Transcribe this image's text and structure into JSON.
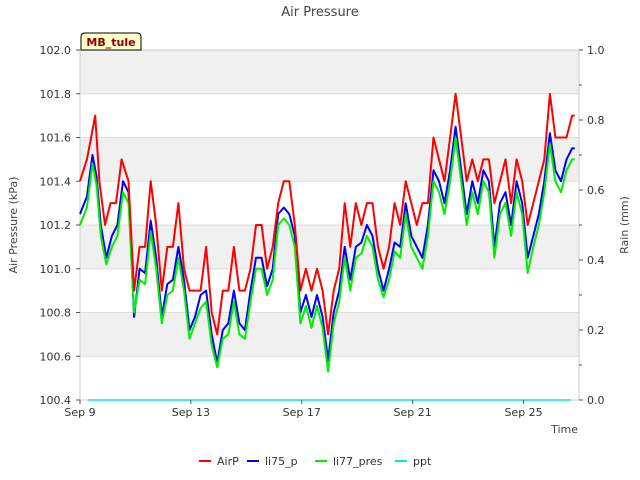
{
  "chart_data": {
    "type": "line",
    "title": "Air Pressure",
    "xlabel": "Time",
    "ylabel": "Air Pressure (kPa)",
    "y2label": "Rain (mm)",
    "site_label": "MB_tule",
    "xlim": [
      9.0,
      27.0
    ],
    "ylim": [
      100.4,
      102.0
    ],
    "y2lim": [
      0.0,
      1.0
    ],
    "x_ticks": [
      9,
      13,
      17,
      21,
      25
    ],
    "x_tick_labels": [
      "Sep 9",
      "Sep 13",
      "Sep 17",
      "Sep 21",
      "Sep 25"
    ],
    "y_tick_labels": [
      "100.4",
      "100.6",
      "100.8",
      "101.0",
      "101.2",
      "101.4",
      "101.6",
      "101.8",
      "102.0"
    ],
    "y2_tick_labels": [
      "0.0",
      "0.2",
      "0.4",
      "0.6",
      "0.8",
      "1.0"
    ],
    "legend": [
      "AirP",
      "li75_p",
      "li77_pres",
      "ppt"
    ],
    "legend_position": "bottom-center",
    "colors": {
      "AirP": "#ff0000",
      "li75_p": "#0000ff",
      "li77_pres": "#00ee00",
      "ppt": "#00e5ee",
      "band": "#f0f0f0",
      "grid": "#dddddd",
      "site_box_fill": "#ffffcc",
      "site_box_text": "#8b0000"
    },
    "series": [
      {
        "name": "li75_p",
        "x": [
          9.0,
          9.25,
          9.45,
          9.6,
          9.75,
          9.95,
          10.15,
          10.35,
          10.55,
          10.75,
          10.95,
          11.15,
          11.35,
          11.55,
          11.75,
          11.95,
          12.15,
          12.35,
          12.55,
          12.75,
          12.95,
          13.15,
          13.35,
          13.55,
          13.75,
          13.95,
          14.15,
          14.35,
          14.55,
          14.75,
          14.95,
          15.15,
          15.35,
          15.55,
          15.75,
          15.95,
          16.15,
          16.35,
          16.55,
          16.75,
          16.95,
          17.15,
          17.35,
          17.55,
          17.75,
          17.95,
          18.15,
          18.35,
          18.55,
          18.75,
          18.95,
          19.15,
          19.35,
          19.55,
          19.75,
          19.95,
          20.15,
          20.35,
          20.55,
          20.75,
          20.95,
          21.15,
          21.35,
          21.55,
          21.75,
          21.95,
          22.15,
          22.35,
          22.55,
          22.75,
          22.95,
          23.15,
          23.35,
          23.55,
          23.75,
          23.95,
          24.15,
          24.35,
          24.55,
          24.75,
          24.95,
          25.15,
          25.35,
          25.55,
          25.75,
          25.95,
          26.15,
          26.35,
          26.55,
          26.75,
          26.85
        ],
        "values": [
          101.25,
          101.33,
          101.52,
          101.42,
          101.2,
          101.05,
          101.15,
          101.2,
          101.4,
          101.35,
          100.78,
          101.0,
          100.98,
          101.22,
          101.05,
          100.78,
          100.93,
          100.95,
          101.1,
          100.95,
          100.72,
          100.78,
          100.88,
          100.9,
          100.7,
          100.57,
          100.72,
          100.75,
          100.9,
          100.75,
          100.72,
          100.9,
          101.05,
          101.05,
          100.92,
          101.0,
          101.25,
          101.28,
          101.25,
          101.15,
          100.8,
          100.88,
          100.78,
          100.88,
          100.78,
          100.58,
          100.8,
          100.9,
          101.1,
          100.95,
          101.1,
          101.12,
          101.2,
          101.15,
          101.0,
          100.9,
          101.0,
          101.12,
          101.1,
          101.3,
          101.15,
          101.1,
          101.05,
          101.2,
          101.45,
          101.4,
          101.3,
          101.45,
          101.65,
          101.45,
          101.25,
          101.4,
          101.3,
          101.45,
          101.4,
          101.1,
          101.3,
          101.35,
          101.2,
          101.4,
          101.3,
          101.05,
          101.15,
          101.25,
          101.4,
          101.62,
          101.45,
          101.4,
          101.5,
          101.55,
          101.55
        ]
      },
      {
        "name": "li77_pres",
        "x": [
          9.0,
          9.25,
          9.45,
          9.6,
          9.75,
          9.95,
          10.15,
          10.35,
          10.55,
          10.75,
          10.95,
          11.15,
          11.35,
          11.55,
          11.75,
          11.95,
          12.15,
          12.35,
          12.55,
          12.75,
          12.95,
          13.15,
          13.35,
          13.55,
          13.75,
          13.95,
          14.15,
          14.35,
          14.55,
          14.75,
          14.95,
          15.15,
          15.35,
          15.55,
          15.75,
          15.95,
          16.15,
          16.35,
          16.55,
          16.75,
          16.95,
          17.15,
          17.35,
          17.55,
          17.75,
          17.95,
          18.15,
          18.35,
          18.55,
          18.75,
          18.95,
          19.15,
          19.35,
          19.55,
          19.75,
          19.95,
          20.15,
          20.35,
          20.55,
          20.75,
          20.95,
          21.15,
          21.35,
          21.55,
          21.75,
          21.95,
          22.15,
          22.35,
          22.55,
          22.75,
          22.95,
          23.15,
          23.35,
          23.55,
          23.75,
          23.95,
          24.15,
          24.35,
          24.55,
          24.75,
          24.95,
          25.15,
          25.35,
          25.55,
          25.75,
          25.95,
          26.15,
          26.35,
          26.55,
          26.75,
          26.85
        ],
        "values": [
          101.2,
          101.28,
          101.48,
          101.38,
          101.15,
          101.02,
          101.1,
          101.15,
          101.35,
          101.3,
          100.8,
          100.95,
          100.93,
          101.17,
          101.0,
          100.75,
          100.88,
          100.9,
          101.05,
          100.9,
          100.68,
          100.75,
          100.82,
          100.85,
          100.65,
          100.55,
          100.68,
          100.7,
          100.85,
          100.7,
          100.68,
          100.85,
          101.0,
          101.0,
          100.88,
          100.95,
          101.2,
          101.23,
          101.2,
          101.1,
          100.75,
          100.83,
          100.73,
          100.83,
          100.73,
          100.53,
          100.75,
          100.85,
          101.05,
          100.9,
          101.05,
          101.07,
          101.15,
          101.1,
          100.95,
          100.87,
          100.95,
          101.08,
          101.05,
          101.25,
          101.1,
          101.05,
          101.0,
          101.15,
          101.4,
          101.35,
          101.25,
          101.4,
          101.6,
          101.4,
          101.2,
          101.35,
          101.25,
          101.4,
          101.35,
          101.05,
          101.25,
          101.3,
          101.15,
          101.35,
          101.25,
          100.98,
          101.1,
          101.2,
          101.35,
          101.57,
          101.4,
          101.35,
          101.45,
          101.5,
          101.5
        ]
      },
      {
        "name": "AirP",
        "x": [
          9.0,
          9.25,
          9.4,
          9.55,
          9.7,
          9.9,
          10.1,
          10.3,
          10.5,
          10.75,
          10.95,
          11.15,
          11.35,
          11.55,
          11.75,
          11.95,
          12.15,
          12.35,
          12.55,
          12.75,
          12.95,
          13.15,
          13.35,
          13.55,
          13.75,
          13.95,
          14.15,
          14.35,
          14.55,
          14.75,
          14.95,
          15.15,
          15.35,
          15.55,
          15.75,
          15.95,
          16.15,
          16.35,
          16.55,
          16.75,
          16.95,
          17.15,
          17.35,
          17.55,
          17.75,
          17.95,
          18.15,
          18.35,
          18.55,
          18.75,
          18.95,
          19.15,
          19.35,
          19.55,
          19.75,
          19.95,
          20.15,
          20.35,
          20.55,
          20.75,
          20.95,
          21.15,
          21.35,
          21.55,
          21.75,
          21.95,
          22.15,
          22.35,
          22.55,
          22.75,
          22.95,
          23.15,
          23.35,
          23.55,
          23.75,
          23.95,
          24.15,
          24.35,
          24.55,
          24.75,
          24.95,
          25.15,
          25.35,
          25.55,
          25.75,
          25.95,
          26.15,
          26.35,
          26.55,
          26.75,
          26.85
        ],
        "values": [
          101.4,
          101.5,
          101.6,
          101.7,
          101.4,
          101.2,
          101.3,
          101.3,
          101.5,
          101.4,
          100.9,
          101.1,
          101.1,
          101.4,
          101.2,
          100.9,
          101.1,
          101.1,
          101.3,
          101.0,
          100.9,
          100.9,
          100.9,
          101.1,
          100.8,
          100.7,
          100.9,
          100.9,
          101.1,
          100.9,
          100.9,
          101.0,
          101.2,
          101.2,
          101.0,
          101.1,
          101.3,
          101.4,
          101.4,
          101.2,
          100.9,
          101.0,
          100.9,
          101.0,
          100.9,
          100.7,
          100.9,
          101.0,
          101.3,
          101.1,
          101.3,
          101.2,
          101.3,
          101.3,
          101.1,
          101.0,
          101.1,
          101.3,
          101.2,
          101.4,
          101.3,
          101.2,
          101.3,
          101.3,
          101.6,
          101.5,
          101.4,
          101.6,
          101.8,
          101.6,
          101.4,
          101.5,
          101.4,
          101.5,
          101.5,
          101.3,
          101.4,
          101.5,
          101.3,
          101.5,
          101.4,
          101.2,
          101.3,
          101.4,
          101.5,
          101.8,
          101.6,
          101.6,
          101.6,
          101.7,
          101.7
        ]
      },
      {
        "name": "ppt",
        "axis": "y2",
        "x": [
          9.3,
          26.7
        ],
        "values": [
          0.0,
          0.0
        ]
      }
    ]
  }
}
